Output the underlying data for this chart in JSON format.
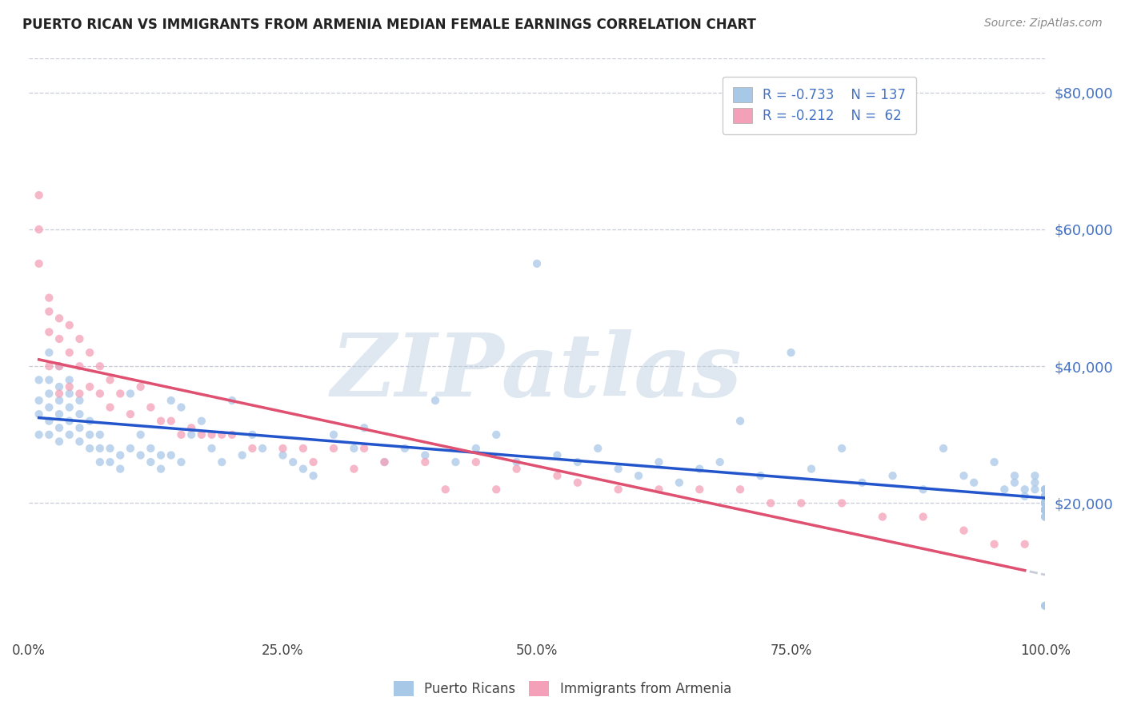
{
  "title": "PUERTO RICAN VS IMMIGRANTS FROM ARMENIA MEDIAN FEMALE EARNINGS CORRELATION CHART",
  "source_text": "Source: ZipAtlas.com",
  "ylabel": "Median Female Earnings",
  "watermark": "ZIPatlas",
  "xlim": [
    0,
    1.0
  ],
  "ylim": [
    0,
    85000
  ],
  "yticks": [
    0,
    20000,
    40000,
    60000,
    80000
  ],
  "ytick_labels": [
    "",
    "$20,000",
    "$40,000",
    "$60,000",
    "$80,000"
  ],
  "xticks": [
    0,
    0.25,
    0.5,
    0.75,
    1.0
  ],
  "xtick_labels": [
    "0.0%",
    "25.0%",
    "50.0%",
    "75.0%",
    "100.0%"
  ],
  "blue_color": "#a8c8e8",
  "pink_color": "#f4a0b8",
  "blue_line_color": "#2255cc",
  "pink_line_color": "#e05070",
  "dashed_line_color": "#c8ccd8",
  "text_color": "#4472c4",
  "legend_r1": "R = -0.733",
  "legend_n1": "N = 137",
  "legend_r2": "R = -0.212",
  "legend_n2": "N =  62",
  "legend_label1": "Puerto Ricans",
  "legend_label2": "Immigrants from Armenia",
  "blue_x": [
    0.01,
    0.01,
    0.01,
    0.01,
    0.02,
    0.02,
    0.02,
    0.02,
    0.02,
    0.02,
    0.03,
    0.03,
    0.03,
    0.03,
    0.03,
    0.03,
    0.04,
    0.04,
    0.04,
    0.04,
    0.04,
    0.05,
    0.05,
    0.05,
    0.05,
    0.06,
    0.06,
    0.06,
    0.07,
    0.07,
    0.07,
    0.08,
    0.08,
    0.09,
    0.09,
    0.1,
    0.1,
    0.11,
    0.11,
    0.12,
    0.12,
    0.13,
    0.13,
    0.14,
    0.14,
    0.15,
    0.15,
    0.16,
    0.17,
    0.18,
    0.19,
    0.2,
    0.21,
    0.22,
    0.23,
    0.25,
    0.26,
    0.27,
    0.28,
    0.3,
    0.32,
    0.33,
    0.35,
    0.37,
    0.39,
    0.4,
    0.42,
    0.44,
    0.46,
    0.48,
    0.5,
    0.52,
    0.54,
    0.56,
    0.58,
    0.6,
    0.62,
    0.64,
    0.66,
    0.68,
    0.7,
    0.72,
    0.75,
    0.77,
    0.8,
    0.82,
    0.85,
    0.88,
    0.9,
    0.92,
    0.93,
    0.95,
    0.96,
    0.97,
    0.97,
    0.98,
    0.98,
    0.99,
    0.99,
    0.99,
    1.0,
    1.0,
    1.0,
    1.0,
    1.0,
    1.0,
    1.0,
    1.0,
    1.0,
    1.0,
    1.0,
    1.0,
    1.0,
    1.0,
    1.0,
    1.0,
    1.0,
    1.0,
    1.0,
    1.0,
    1.0,
    1.0,
    1.0,
    1.0,
    1.0,
    1.0,
    1.0,
    1.0,
    1.0,
    1.0,
    1.0,
    1.0,
    1.0,
    1.0,
    1.0,
    1.0,
    1.0
  ],
  "blue_y": [
    38000,
    35000,
    33000,
    30000,
    42000,
    38000,
    36000,
    34000,
    32000,
    30000,
    40000,
    37000,
    35000,
    33000,
    31000,
    29000,
    38000,
    36000,
    34000,
    32000,
    30000,
    35000,
    33000,
    31000,
    29000,
    32000,
    30000,
    28000,
    30000,
    28000,
    26000,
    28000,
    26000,
    27000,
    25000,
    36000,
    28000,
    30000,
    27000,
    28000,
    26000,
    27000,
    25000,
    35000,
    27000,
    34000,
    26000,
    30000,
    32000,
    28000,
    26000,
    35000,
    27000,
    30000,
    28000,
    27000,
    26000,
    25000,
    24000,
    30000,
    28000,
    31000,
    26000,
    28000,
    27000,
    35000,
    26000,
    28000,
    30000,
    26000,
    55000,
    27000,
    26000,
    28000,
    25000,
    24000,
    26000,
    23000,
    25000,
    26000,
    32000,
    24000,
    42000,
    25000,
    28000,
    23000,
    24000,
    22000,
    28000,
    24000,
    23000,
    26000,
    22000,
    24000,
    23000,
    22000,
    21000,
    24000,
    23000,
    22000,
    21000,
    20000,
    22000,
    21000,
    20000,
    22000,
    21000,
    20000,
    19000,
    22000,
    21000,
    20000,
    19000,
    21000,
    20000,
    19000,
    21000,
    20000,
    19000,
    5000,
    22000,
    20000,
    19000,
    20000,
    19000,
    20000,
    19000,
    5000,
    20000,
    19000,
    19000,
    20000,
    19000,
    18000,
    20000,
    19000,
    18000
  ],
  "pink_x": [
    0.01,
    0.01,
    0.01,
    0.02,
    0.02,
    0.02,
    0.02,
    0.03,
    0.03,
    0.03,
    0.03,
    0.04,
    0.04,
    0.04,
    0.05,
    0.05,
    0.05,
    0.06,
    0.06,
    0.07,
    0.07,
    0.08,
    0.08,
    0.09,
    0.1,
    0.11,
    0.12,
    0.13,
    0.14,
    0.15,
    0.16,
    0.17,
    0.18,
    0.19,
    0.2,
    0.22,
    0.25,
    0.27,
    0.28,
    0.3,
    0.32,
    0.33,
    0.35,
    0.39,
    0.41,
    0.44,
    0.46,
    0.48,
    0.52,
    0.54,
    0.58,
    0.62,
    0.66,
    0.7,
    0.73,
    0.76,
    0.8,
    0.84,
    0.88,
    0.92,
    0.95,
    0.98
  ],
  "pink_y": [
    65000,
    60000,
    55000,
    50000,
    48000,
    45000,
    40000,
    47000,
    44000,
    40000,
    36000,
    46000,
    42000,
    37000,
    44000,
    40000,
    36000,
    42000,
    37000,
    40000,
    36000,
    38000,
    34000,
    36000,
    33000,
    37000,
    34000,
    32000,
    32000,
    30000,
    31000,
    30000,
    30000,
    30000,
    30000,
    28000,
    28000,
    28000,
    26000,
    28000,
    25000,
    28000,
    26000,
    26000,
    22000,
    26000,
    22000,
    25000,
    24000,
    23000,
    22000,
    22000,
    22000,
    22000,
    20000,
    20000,
    20000,
    18000,
    18000,
    16000,
    14000,
    14000
  ]
}
